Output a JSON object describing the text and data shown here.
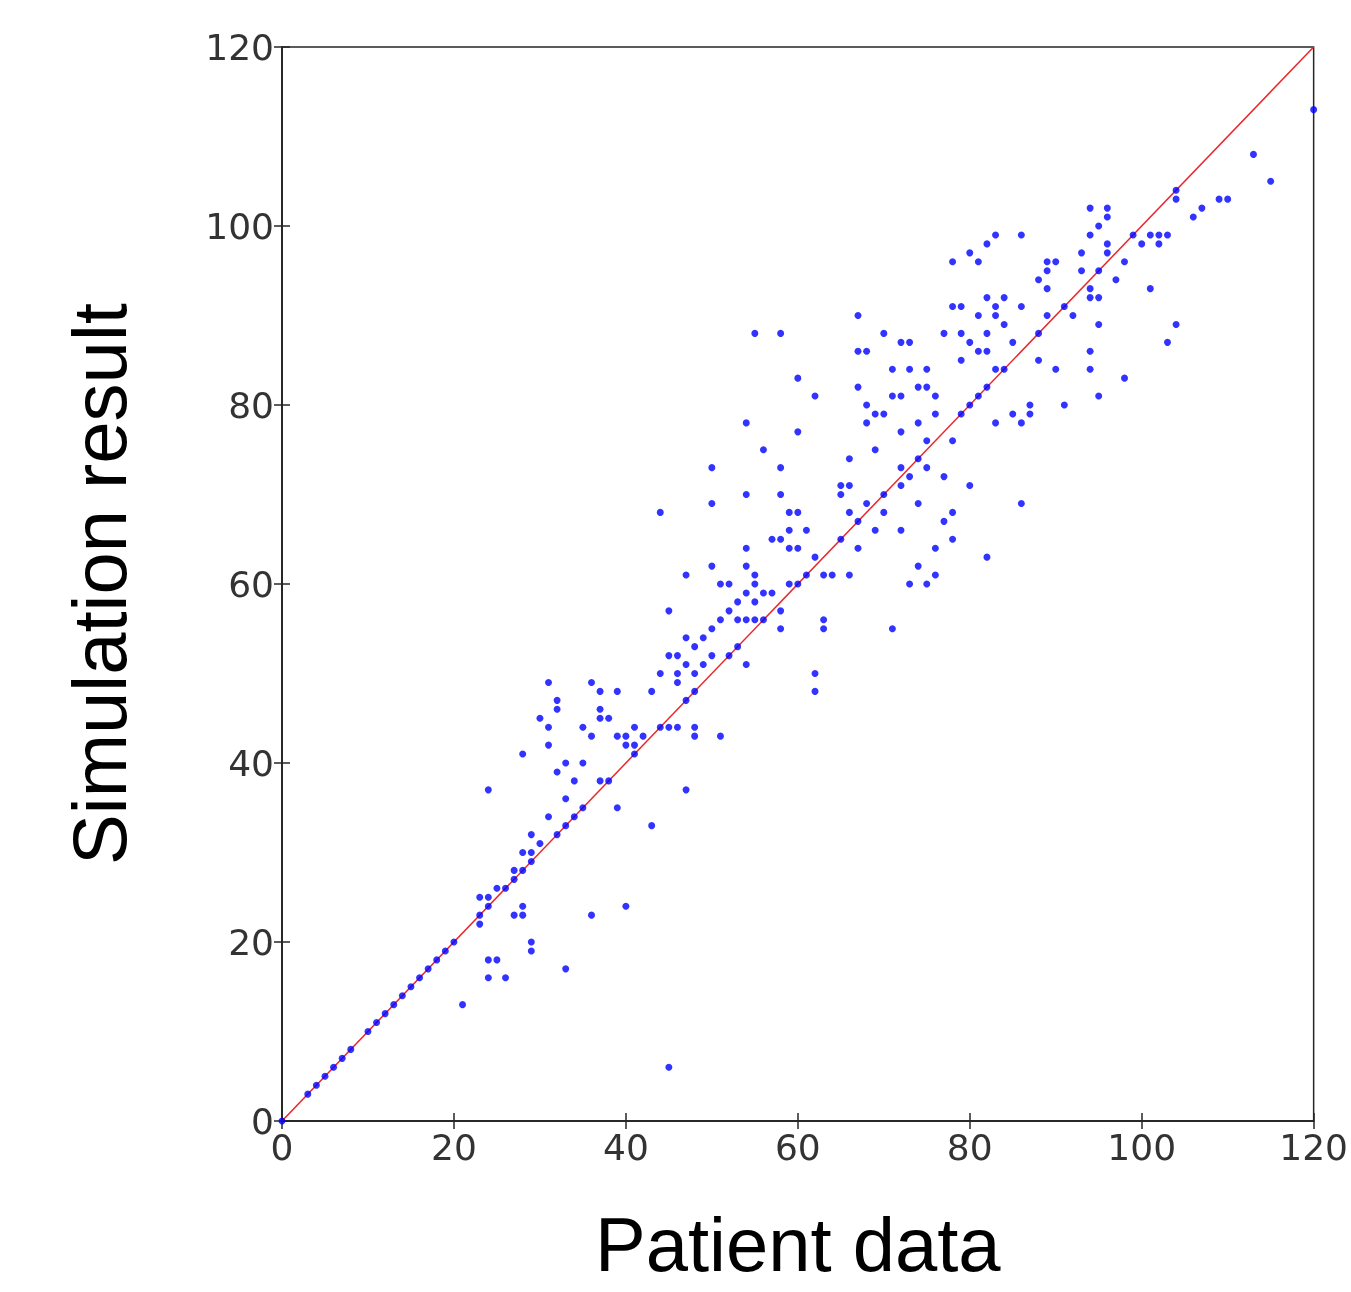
{
  "chart_data": {
    "type": "scatter",
    "xlabel": "Patient data",
    "ylabel": "Simulation result",
    "xlim": [
      0,
      120
    ],
    "ylim": [
      0,
      120
    ],
    "xticks": [
      0,
      20,
      40,
      60,
      80,
      100,
      120
    ],
    "yticks": [
      0,
      20,
      40,
      60,
      80,
      100,
      120
    ],
    "grid": false,
    "series": [
      {
        "color": "#0000ff",
        "marker": "circle",
        "x": [
          0,
          3,
          4,
          5,
          6,
          7,
          8,
          10,
          11,
          12,
          13,
          14,
          15,
          16,
          17,
          18,
          19,
          20,
          21,
          23,
          23,
          23,
          24,
          24,
          25,
          26,
          27,
          27,
          28,
          29,
          24,
          25,
          24,
          26,
          24,
          27,
          28,
          28,
          29,
          29,
          28,
          29,
          29,
          28,
          30,
          30,
          31,
          31,
          31,
          31,
          32,
          32,
          32,
          32,
          33,
          33,
          33,
          33,
          34,
          34,
          35,
          35,
          35,
          36,
          36,
          36,
          37,
          37,
          37,
          37,
          38,
          38,
          39,
          39,
          39,
          40,
          40,
          40,
          41,
          41,
          41,
          42,
          43,
          43,
          44,
          44,
          44,
          45,
          45,
          45,
          45,
          46,
          46,
          46,
          46,
          47,
          47,
          47,
          47,
          47,
          48,
          48,
          48,
          48,
          48,
          49,
          49,
          50,
          50,
          50,
          50,
          50,
          51,
          51,
          51,
          52,
          52,
          52,
          53,
          53,
          53,
          54,
          54,
          54,
          54,
          54,
          54,
          54,
          55,
          55,
          55,
          55,
          55,
          56,
          56,
          56,
          57,
          57,
          58,
          58,
          58,
          58,
          58,
          58,
          59,
          59,
          59,
          59,
          60,
          60,
          60,
          60,
          60,
          61,
          61,
          62,
          62,
          62,
          62,
          63,
          63,
          63,
          64,
          65,
          65,
          65,
          66,
          66,
          66,
          66,
          67,
          67,
          67,
          67,
          67,
          68,
          68,
          68,
          68,
          69,
          69,
          69,
          70,
          70,
          70,
          70,
          71,
          71,
          71,
          72,
          72,
          72,
          72,
          72,
          72,
          73,
          73,
          73,
          73,
          74,
          74,
          74,
          74,
          74,
          75,
          75,
          75,
          75,
          75,
          76,
          76,
          76,
          76,
          77,
          77,
          77,
          78,
          78,
          78,
          78,
          78,
          79,
          79,
          79,
          79,
          80,
          80,
          80,
          80,
          81,
          81,
          81,
          81,
          82,
          82,
          82,
          82,
          82,
          82,
          83,
          83,
          83,
          83,
          83,
          84,
          84,
          84,
          85,
          85,
          86,
          86,
          86,
          86,
          87,
          87,
          88,
          88,
          88,
          89,
          89,
          89,
          89,
          90,
          90,
          91,
          91,
          92,
          93,
          93,
          94,
          94,
          94,
          94,
          94,
          94,
          95,
          95,
          95,
          95,
          95,
          96,
          96,
          96,
          96,
          97,
          98,
          98,
          99,
          100,
          101,
          101,
          102,
          102,
          103,
          103,
          104,
          104,
          104,
          106,
          107,
          109,
          110,
          113,
          115,
          120
        ],
        "values": [
          0,
          3,
          4,
          5,
          6,
          7,
          8,
          10,
          11,
          12,
          13,
          14,
          15,
          16,
          17,
          18,
          19,
          20,
          13,
          22,
          23,
          25,
          25,
          24,
          26,
          26,
          27,
          28,
          28,
          29,
          18,
          18,
          16,
          16,
          37,
          23,
          23,
          24,
          19,
          20,
          30,
          30,
          32,
          41,
          31,
          45,
          49,
          44,
          42,
          34,
          47,
          46,
          39,
          32,
          33,
          40,
          36,
          17,
          34,
          38,
          35,
          40,
          44,
          43,
          49,
          23,
          48,
          46,
          45,
          38,
          38,
          45,
          48,
          35,
          43,
          43,
          42,
          24,
          41,
          42,
          44,
          43,
          48,
          33,
          68,
          50,
          44,
          52,
          57,
          44,
          6,
          52,
          50,
          49,
          44,
          61,
          54,
          51,
          47,
          37,
          48,
          50,
          53,
          44,
          43,
          54,
          51,
          73,
          69,
          62,
          55,
          52,
          60,
          56,
          43,
          60,
          57,
          52,
          56,
          53,
          58,
          78,
          70,
          64,
          62,
          59,
          56,
          51,
          88,
          61,
          58,
          60,
          56,
          59,
          56,
          75,
          65,
          59,
          88,
          73,
          70,
          65,
          57,
          55,
          68,
          66,
          60,
          64,
          83,
          77,
          68,
          64,
          60,
          66,
          61,
          81,
          63,
          50,
          48,
          61,
          56,
          55,
          61,
          71,
          65,
          70,
          74,
          71,
          68,
          61,
          90,
          86,
          82,
          67,
          64,
          86,
          78,
          80,
          69,
          79,
          75,
          66,
          88,
          79,
          70,
          68,
          84,
          81,
          55,
          87,
          81,
          77,
          73,
          71,
          66,
          87,
          84,
          72,
          60,
          82,
          78,
          74,
          62,
          69,
          84,
          82,
          76,
          73,
          60,
          81,
          79,
          64,
          61,
          67,
          72,
          88,
          91,
          96,
          76,
          65,
          68,
          91,
          88,
          85,
          79,
          97,
          87,
          80,
          71,
          96,
          90,
          86,
          81,
          98,
          92,
          88,
          86,
          82,
          63,
          99,
          90,
          91,
          84,
          78,
          92,
          89,
          84,
          79,
          87,
          99,
          91,
          78,
          69,
          79,
          80,
          94,
          88,
          85,
          96,
          95,
          93,
          90,
          96,
          84,
          91,
          80,
          90,
          95,
          97,
          102,
          99,
          93,
          92,
          86,
          84,
          100,
          95,
          92,
          89,
          81,
          102,
          101,
          98,
          97,
          94,
          96,
          83,
          99,
          98,
          99,
          93,
          99,
          98,
          99,
          87,
          104,
          103,
          89,
          101,
          102,
          103,
          103,
          108,
          105,
          113
        ]
      },
      {
        "type": "line",
        "color": "#e8262b",
        "marker": "none",
        "x": [
          0,
          120
        ],
        "values": [
          0,
          120
        ]
      }
    ]
  }
}
